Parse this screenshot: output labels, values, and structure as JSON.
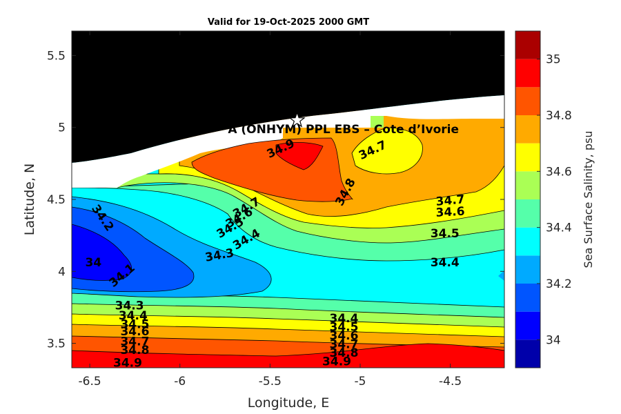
{
  "chart_data": {
    "type": "contour",
    "title": "Valid for 19-Oct-2025 2000 GMT",
    "xlabel": "Longitude, E",
    "ylabel": "Latitude, N",
    "xlim": [
      -6.6,
      -4.2
    ],
    "ylim": [
      3.33,
      5.67
    ],
    "xticks": [
      -6.5,
      -6,
      -5.5,
      -5,
      -4.5
    ],
    "xtick_labels": [
      "-6.5",
      "-6",
      "-5.5",
      "-5",
      "-4.5"
    ],
    "yticks": [
      3.5,
      4,
      4.5,
      5,
      5.5
    ],
    "ytick_labels": [
      "3.5",
      "4",
      "4.5",
      "5",
      "5.5"
    ],
    "site_label": "A (ONHYM) PPL EBS  – Cote d’Ivorie",
    "site_marker": {
      "lon": -5.35,
      "lat": 5.05
    },
    "colorbar": {
      "label": "Sea Surface Salinity, psu",
      "range": [
        33.9,
        35.1
      ],
      "tick_values": [
        34,
        34.2,
        34.4,
        34.6,
        34.8,
        35
      ],
      "tick_labels": [
        "34",
        "34.2",
        "34.4",
        "34.6",
        "34.8",
        "35"
      ],
      "bins": [
        {
          "from": 33.9,
          "to": 34.0,
          "color": "#0000aa"
        },
        {
          "from": 34.0,
          "to": 34.1,
          "color": "#0000ff"
        },
        {
          "from": 34.1,
          "to": 34.2,
          "color": "#0055ff"
        },
        {
          "from": 34.2,
          "to": 34.3,
          "color": "#00aaff"
        },
        {
          "from": 34.3,
          "to": 34.4,
          "color": "#00ffff"
        },
        {
          "from": 34.4,
          "to": 34.5,
          "color": "#55ffaa"
        },
        {
          "from": 34.5,
          "to": 34.6,
          "color": "#aaff55"
        },
        {
          "from": 34.6,
          "to": 34.7,
          "color": "#ffff00"
        },
        {
          "from": 34.7,
          "to": 34.8,
          "color": "#ffaa00"
        },
        {
          "from": 34.8,
          "to": 34.9,
          "color": "#ff5500"
        },
        {
          "from": 34.9,
          "to": 35.0,
          "color": "#ff0000"
        },
        {
          "from": 35.0,
          "to": 35.1,
          "color": "#aa0000"
        }
      ]
    },
    "contour_labels": [
      {
        "text": "34.9",
        "lon": -5.44,
        "lat": 4.85,
        "angle": -25
      },
      {
        "text": "34.7",
        "lon": -4.93,
        "lat": 4.84,
        "angle": -25
      },
      {
        "text": "34.8",
        "lon": -5.08,
        "lat": 4.55,
        "angle": -62
      },
      {
        "text": "34.7",
        "lon": -5.63,
        "lat": 4.44,
        "angle": -30
      },
      {
        "text": "34.6",
        "lon": -5.67,
        "lat": 4.37,
        "angle": -30
      },
      {
        "text": "34.5",
        "lon": -5.72,
        "lat": 4.3,
        "angle": -30
      },
      {
        "text": "34.4",
        "lon": -5.63,
        "lat": 4.22,
        "angle": -30
      },
      {
        "text": "34.3",
        "lon": -5.78,
        "lat": 4.11,
        "angle": -10
      },
      {
        "text": "34.2",
        "lon": -6.43,
        "lat": 4.37,
        "angle": 55
      },
      {
        "text": "34",
        "lon": -6.48,
        "lat": 4.06,
        "angle": 0
      },
      {
        "text": "34.1",
        "lon": -6.32,
        "lat": 3.97,
        "angle": -40
      },
      {
        "text": "34.7",
        "lon": -4.5,
        "lat": 4.49,
        "angle": -5
      },
      {
        "text": "34.6",
        "lon": -4.5,
        "lat": 4.41,
        "angle": -3
      },
      {
        "text": "34.5",
        "lon": -4.53,
        "lat": 4.26,
        "angle": 0
      },
      {
        "text": "34.4",
        "lon": -4.53,
        "lat": 4.06,
        "angle": 0
      },
      {
        "text": "34.3",
        "lon": -6.28,
        "lat": 3.76,
        "angle": 0
      },
      {
        "text": "34.4",
        "lon": -6.26,
        "lat": 3.69,
        "angle": 0
      },
      {
        "text": "34.5",
        "lon": -6.25,
        "lat": 3.63,
        "angle": 0
      },
      {
        "text": "34.6",
        "lon": -6.25,
        "lat": 3.58,
        "angle": 0
      },
      {
        "text": "34.7",
        "lon": -6.25,
        "lat": 3.51,
        "angle": 0
      },
      {
        "text": "34.8",
        "lon": -6.25,
        "lat": 3.45,
        "angle": 0
      },
      {
        "text": "34.9",
        "lon": -6.29,
        "lat": 3.36,
        "angle": 0
      },
      {
        "text": "34.4",
        "lon": -5.09,
        "lat": 3.67,
        "angle": 0
      },
      {
        "text": "34.5",
        "lon": -5.09,
        "lat": 3.61,
        "angle": 0
      },
      {
        "text": "34.6",
        "lon": -5.09,
        "lat": 3.55,
        "angle": 0
      },
      {
        "text": "34.7",
        "lon": -5.09,
        "lat": 3.49,
        "angle": 0
      },
      {
        "text": "34.8",
        "lon": -5.09,
        "lat": 3.43,
        "angle": 0
      },
      {
        "text": "34.9",
        "lon": -5.13,
        "lat": 3.37,
        "angle": 0
      }
    ]
  }
}
